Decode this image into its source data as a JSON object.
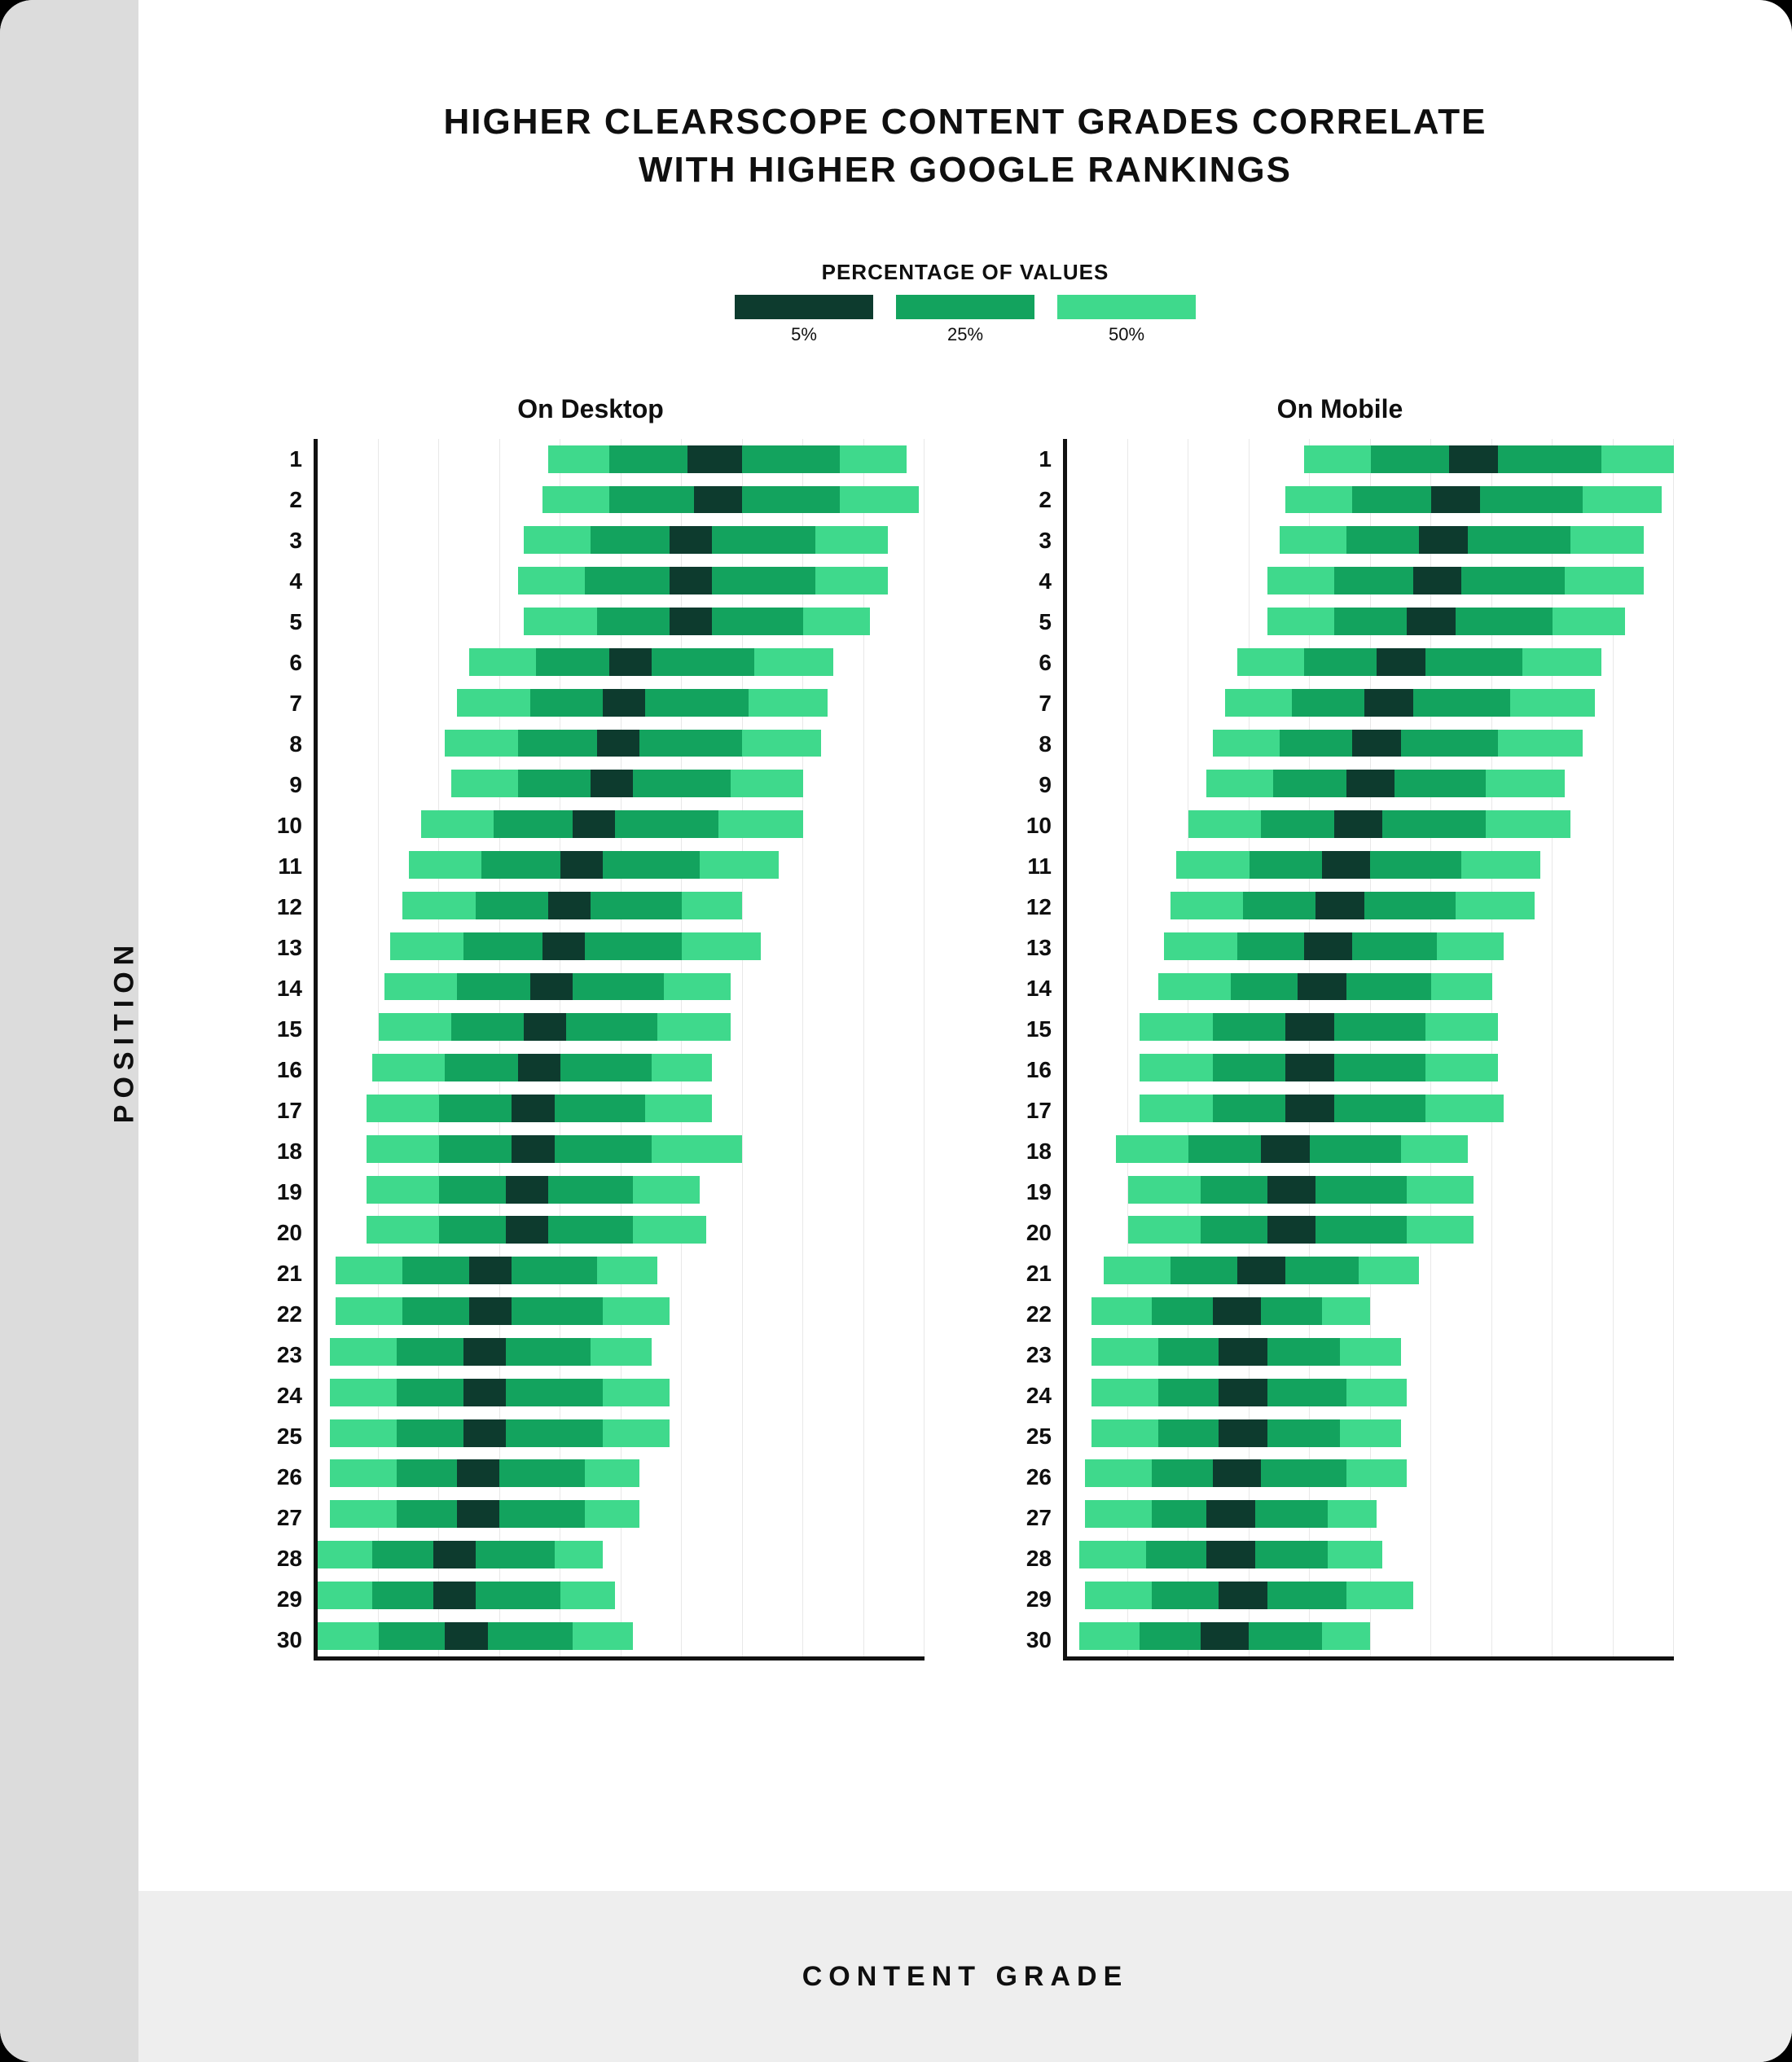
{
  "title_line1": "HIGHER CLEARSCOPE CONTENT GRADES CORRELATE",
  "title_line2": "WITH HIGHER GOOGLE RANKINGS",
  "legend": {
    "title": "PERCENTAGE OF VALUES",
    "items": [
      {
        "label": "5%",
        "color": "#0d3b2e"
      },
      {
        "label": "25%",
        "color": "#13a35e"
      },
      {
        "label": "50%",
        "color": "#3fd98c"
      }
    ]
  },
  "colors": {
    "band50": "#3fd98c",
    "band25": "#13a35e",
    "band5": "#0d3b2e",
    "grid": "#e8e8e8",
    "axis": "#111111",
    "bg_outer": "#dcdcdc",
    "bg_inner": "#ffffff",
    "bg_bottom": "#eeeeee",
    "text": "#0f0f0f"
  },
  "x_axis": {
    "min": 0,
    "max": 100,
    "grid_step": 10
  },
  "y_axis_label": "POSITION",
  "x_axis_label": "CONTENT GRADE",
  "panels": [
    {
      "title": "On Desktop",
      "rows": [
        {
          "pos": 1,
          "p50": [
            38,
            97
          ],
          "p25": [
            48,
            86
          ],
          "p5": [
            61,
            70
          ]
        },
        {
          "pos": 2,
          "p50": [
            37,
            99
          ],
          "p25": [
            48,
            86
          ],
          "p5": [
            62,
            70
          ]
        },
        {
          "pos": 3,
          "p50": [
            34,
            94
          ],
          "p25": [
            45,
            82
          ],
          "p5": [
            58,
            65
          ]
        },
        {
          "pos": 4,
          "p50": [
            33,
            94
          ],
          "p25": [
            44,
            82
          ],
          "p5": [
            58,
            65
          ]
        },
        {
          "pos": 5,
          "p50": [
            34,
            91
          ],
          "p25": [
            46,
            80
          ],
          "p5": [
            58,
            65
          ]
        },
        {
          "pos": 6,
          "p50": [
            25,
            85
          ],
          "p25": [
            36,
            72
          ],
          "p5": [
            48,
            55
          ]
        },
        {
          "pos": 7,
          "p50": [
            23,
            84
          ],
          "p25": [
            35,
            71
          ],
          "p5": [
            47,
            54
          ]
        },
        {
          "pos": 8,
          "p50": [
            21,
            83
          ],
          "p25": [
            33,
            70
          ],
          "p5": [
            46,
            53
          ]
        },
        {
          "pos": 9,
          "p50": [
            22,
            80
          ],
          "p25": [
            33,
            68
          ],
          "p5": [
            45,
            52
          ]
        },
        {
          "pos": 10,
          "p50": [
            17,
            80
          ],
          "p25": [
            29,
            66
          ],
          "p5": [
            42,
            49
          ]
        },
        {
          "pos": 11,
          "p50": [
            15,
            76
          ],
          "p25": [
            27,
            63
          ],
          "p5": [
            40,
            47
          ]
        },
        {
          "pos": 12,
          "p50": [
            14,
            70
          ],
          "p25": [
            26,
            60
          ],
          "p5": [
            38,
            45
          ]
        },
        {
          "pos": 13,
          "p50": [
            12,
            73
          ],
          "p25": [
            24,
            60
          ],
          "p5": [
            37,
            44
          ]
        },
        {
          "pos": 14,
          "p50": [
            11,
            68
          ],
          "p25": [
            23,
            57
          ],
          "p5": [
            35,
            42
          ]
        },
        {
          "pos": 15,
          "p50": [
            10,
            68
          ],
          "p25": [
            22,
            56
          ],
          "p5": [
            34,
            41
          ]
        },
        {
          "pos": 16,
          "p50": [
            9,
            65
          ],
          "p25": [
            21,
            55
          ],
          "p5": [
            33,
            40
          ]
        },
        {
          "pos": 17,
          "p50": [
            8,
            65
          ],
          "p25": [
            20,
            54
          ],
          "p5": [
            32,
            39
          ]
        },
        {
          "pos": 18,
          "p50": [
            8,
            70
          ],
          "p25": [
            20,
            55
          ],
          "p5": [
            32,
            39
          ]
        },
        {
          "pos": 19,
          "p50": [
            8,
            63
          ],
          "p25": [
            20,
            52
          ],
          "p5": [
            31,
            38
          ]
        },
        {
          "pos": 20,
          "p50": [
            8,
            64
          ],
          "p25": [
            20,
            52
          ],
          "p5": [
            31,
            38
          ]
        },
        {
          "pos": 21,
          "p50": [
            3,
            56
          ],
          "p25": [
            14,
            46
          ],
          "p5": [
            25,
            32
          ]
        },
        {
          "pos": 22,
          "p50": [
            3,
            58
          ],
          "p25": [
            14,
            47
          ],
          "p5": [
            25,
            32
          ]
        },
        {
          "pos": 23,
          "p50": [
            2,
            55
          ],
          "p25": [
            13,
            45
          ],
          "p5": [
            24,
            31
          ]
        },
        {
          "pos": 24,
          "p50": [
            2,
            58
          ],
          "p25": [
            13,
            47
          ],
          "p5": [
            24,
            31
          ]
        },
        {
          "pos": 25,
          "p50": [
            2,
            58
          ],
          "p25": [
            13,
            47
          ],
          "p5": [
            24,
            31
          ]
        },
        {
          "pos": 26,
          "p50": [
            2,
            53
          ],
          "p25": [
            13,
            44
          ],
          "p5": [
            23,
            30
          ]
        },
        {
          "pos": 27,
          "p50": [
            2,
            53
          ],
          "p25": [
            13,
            44
          ],
          "p5": [
            23,
            30
          ]
        },
        {
          "pos": 28,
          "p50": [
            0,
            47
          ],
          "p25": [
            9,
            39
          ],
          "p5": [
            19,
            26
          ]
        },
        {
          "pos": 29,
          "p50": [
            0,
            49
          ],
          "p25": [
            9,
            40
          ],
          "p5": [
            19,
            26
          ]
        },
        {
          "pos": 30,
          "p50": [
            0,
            52
          ],
          "p25": [
            10,
            42
          ],
          "p5": [
            21,
            28
          ]
        }
      ]
    },
    {
      "title": "On Mobile",
      "rows": [
        {
          "pos": 1,
          "p50": [
            39,
            100
          ],
          "p25": [
            50,
            88
          ],
          "p5": [
            63,
            71
          ]
        },
        {
          "pos": 2,
          "p50": [
            36,
            98
          ],
          "p25": [
            47,
            85
          ],
          "p5": [
            60,
            68
          ]
        },
        {
          "pos": 3,
          "p50": [
            35,
            95
          ],
          "p25": [
            46,
            83
          ],
          "p5": [
            58,
            66
          ]
        },
        {
          "pos": 4,
          "p50": [
            33,
            95
          ],
          "p25": [
            44,
            82
          ],
          "p5": [
            57,
            65
          ]
        },
        {
          "pos": 5,
          "p50": [
            33,
            92
          ],
          "p25": [
            44,
            80
          ],
          "p5": [
            56,
            64
          ]
        },
        {
          "pos": 6,
          "p50": [
            28,
            88
          ],
          "p25": [
            39,
            75
          ],
          "p5": [
            51,
            59
          ]
        },
        {
          "pos": 7,
          "p50": [
            26,
            87
          ],
          "p25": [
            37,
            73
          ],
          "p5": [
            49,
            57
          ]
        },
        {
          "pos": 8,
          "p50": [
            24,
            85
          ],
          "p25": [
            35,
            71
          ],
          "p5": [
            47,
            55
          ]
        },
        {
          "pos": 9,
          "p50": [
            23,
            82
          ],
          "p25": [
            34,
            69
          ],
          "p5": [
            46,
            54
          ]
        },
        {
          "pos": 10,
          "p50": [
            20,
            83
          ],
          "p25": [
            32,
            69
          ],
          "p5": [
            44,
            52
          ]
        },
        {
          "pos": 11,
          "p50": [
            18,
            78
          ],
          "p25": [
            30,
            65
          ],
          "p5": [
            42,
            50
          ]
        },
        {
          "pos": 12,
          "p50": [
            17,
            77
          ],
          "p25": [
            29,
            64
          ],
          "p5": [
            41,
            49
          ]
        },
        {
          "pos": 13,
          "p50": [
            16,
            72
          ],
          "p25": [
            28,
            61
          ],
          "p5": [
            39,
            47
          ]
        },
        {
          "pos": 14,
          "p50": [
            15,
            70
          ],
          "p25": [
            27,
            60
          ],
          "p5": [
            38,
            46
          ]
        },
        {
          "pos": 15,
          "p50": [
            12,
            71
          ],
          "p25": [
            24,
            59
          ],
          "p5": [
            36,
            44
          ]
        },
        {
          "pos": 16,
          "p50": [
            12,
            71
          ],
          "p25": [
            24,
            59
          ],
          "p5": [
            36,
            44
          ]
        },
        {
          "pos": 17,
          "p50": [
            12,
            72
          ],
          "p25": [
            24,
            59
          ],
          "p5": [
            36,
            44
          ]
        },
        {
          "pos": 18,
          "p50": [
            8,
            66
          ],
          "p25": [
            20,
            55
          ],
          "p5": [
            32,
            40
          ]
        },
        {
          "pos": 19,
          "p50": [
            10,
            67
          ],
          "p25": [
            22,
            56
          ],
          "p5": [
            33,
            41
          ]
        },
        {
          "pos": 20,
          "p50": [
            10,
            67
          ],
          "p25": [
            22,
            56
          ],
          "p5": [
            33,
            41
          ]
        },
        {
          "pos": 21,
          "p50": [
            6,
            58
          ],
          "p25": [
            17,
            48
          ],
          "p5": [
            28,
            36
          ]
        },
        {
          "pos": 22,
          "p50": [
            4,
            50
          ],
          "p25": [
            14,
            42
          ],
          "p5": [
            24,
            32
          ]
        },
        {
          "pos": 23,
          "p50": [
            4,
            55
          ],
          "p25": [
            15,
            45
          ],
          "p5": [
            25,
            33
          ]
        },
        {
          "pos": 24,
          "p50": [
            4,
            56
          ],
          "p25": [
            15,
            46
          ],
          "p5": [
            25,
            33
          ]
        },
        {
          "pos": 25,
          "p50": [
            4,
            55
          ],
          "p25": [
            15,
            45
          ],
          "p5": [
            25,
            33
          ]
        },
        {
          "pos": 26,
          "p50": [
            3,
            56
          ],
          "p25": [
            14,
            46
          ],
          "p5": [
            24,
            32
          ]
        },
        {
          "pos": 27,
          "p50": [
            3,
            51
          ],
          "p25": [
            14,
            43
          ],
          "p5": [
            23,
            31
          ]
        },
        {
          "pos": 28,
          "p50": [
            2,
            52
          ],
          "p25": [
            13,
            43
          ],
          "p5": [
            23,
            31
          ]
        },
        {
          "pos": 29,
          "p50": [
            3,
            57
          ],
          "p25": [
            14,
            46
          ],
          "p5": [
            25,
            33
          ]
        },
        {
          "pos": 30,
          "p50": [
            2,
            50
          ],
          "p25": [
            12,
            42
          ],
          "p5": [
            22,
            30
          ]
        }
      ]
    }
  ]
}
